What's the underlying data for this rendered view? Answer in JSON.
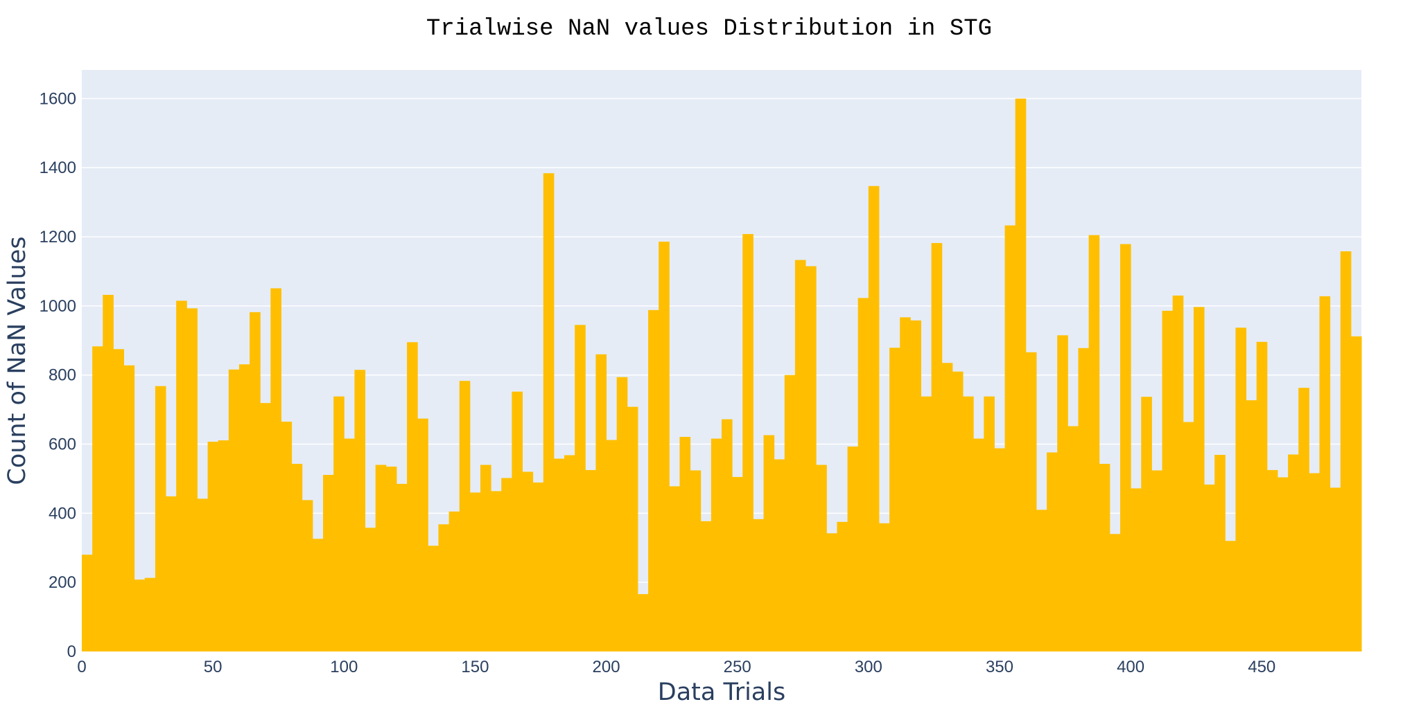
{
  "chart_data": {
    "type": "bar",
    "title": "Trialwise NaN values Distribution in STG",
    "xlabel": "Data Trials",
    "ylabel": "Count of NaN Values",
    "xlim": [
      0,
      488
    ],
    "ylim": [
      0,
      1683
    ],
    "bin_width": 4,
    "x_ticks": [
      0,
      50,
      100,
      150,
      200,
      250,
      300,
      350,
      400,
      450
    ],
    "y_ticks": [
      0,
      200,
      400,
      600,
      800,
      1000,
      1200,
      1400,
      1600
    ],
    "grid": true,
    "bar_color": "#FFBF00",
    "plot_bg": "#E5ECF6",
    "values": [
      280,
      883,
      1032,
      875,
      828,
      208,
      213,
      768,
      449,
      1015,
      993,
      442,
      607,
      611,
      816,
      831,
      982,
      719,
      1051,
      665,
      543,
      438,
      326,
      511,
      738,
      616,
      815,
      358,
      540,
      535,
      485,
      895,
      674,
      306,
      368,
      405,
      783,
      460,
      540,
      464,
      502,
      752,
      520,
      489,
      1384,
      558,
      568,
      945,
      525,
      860,
      612,
      794,
      708,
      166,
      988,
      1186,
      478,
      621,
      524,
      377,
      616,
      672,
      505,
      1208,
      383,
      626,
      556,
      800,
      1133,
      1115,
      540,
      342,
      375,
      593,
      1023,
      1347,
      371,
      879,
      967,
      958,
      738,
      1182,
      835,
      810,
      738,
      616,
      738,
      588,
      1233,
      1600,
      866,
      410,
      576,
      915,
      652,
      878,
      1205,
      543,
      340,
      1179,
      472,
      737,
      524,
      986,
      1030,
      664,
      997,
      483,
      569,
      320,
      937,
      727,
      896,
      525,
      504,
      570,
      763,
      516,
      1028,
      474,
      1158,
      912
    ]
  }
}
